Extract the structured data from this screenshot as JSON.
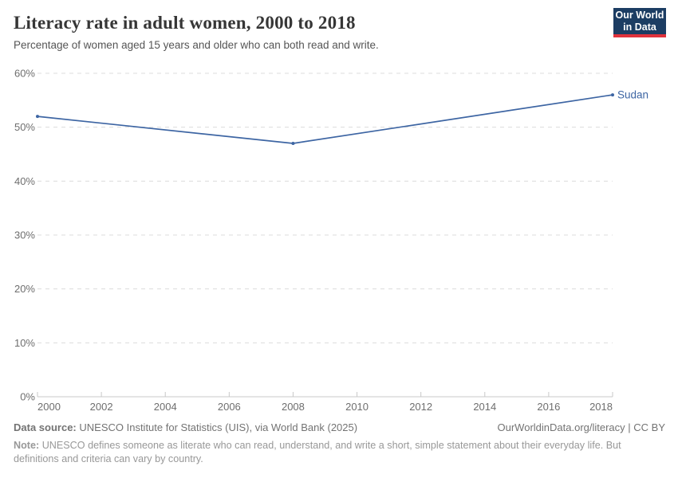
{
  "header": {
    "title": "Literacy rate in adult women, 2000 to 2018",
    "subtitle": "Percentage of women aged 15 years and older who can both read and write.",
    "logo": {
      "line1": "Our World",
      "line2": "in Data"
    }
  },
  "chart_data": {
    "type": "line",
    "title": "Literacy rate in adult women, 2000 to 2018",
    "xlabel": "",
    "ylabel": "",
    "xlim": [
      2000,
      2018
    ],
    "xticks": [
      2000,
      2002,
      2004,
      2006,
      2008,
      2010,
      2012,
      2014,
      2016,
      2018
    ],
    "ylim": [
      0,
      60
    ],
    "yticks": [
      0,
      10,
      20,
      30,
      40,
      50,
      60
    ],
    "y_tick_suffix": "%",
    "grid": "horizontal-dashed",
    "legend_position": "end-of-line-label",
    "series": [
      {
        "name": "Sudan",
        "color": "#3d65a3",
        "points": [
          [
            2000,
            52
          ],
          [
            2008,
            47
          ],
          [
            2018,
            56
          ]
        ]
      }
    ]
  },
  "footer": {
    "source_label": "Data source:",
    "source_text": "UNESCO Institute for Statistics (UIS), via World Bank (2025)",
    "attribution": "OurWorldinData.org/literacy | CC BY",
    "note_label": "Note:",
    "note_text": "UNESCO defines someone as literate who can read, understand, and write a short, simple statement about their everyday life. But definitions and criteria can vary by country."
  },
  "colors": {
    "line": "#3d65a3",
    "logo_bg": "#1c3d63",
    "logo_stripe": "#e0323c",
    "grid": "#dcdcdc",
    "axis": "#c8c8c8",
    "tick_text": "#6e6e6e"
  }
}
